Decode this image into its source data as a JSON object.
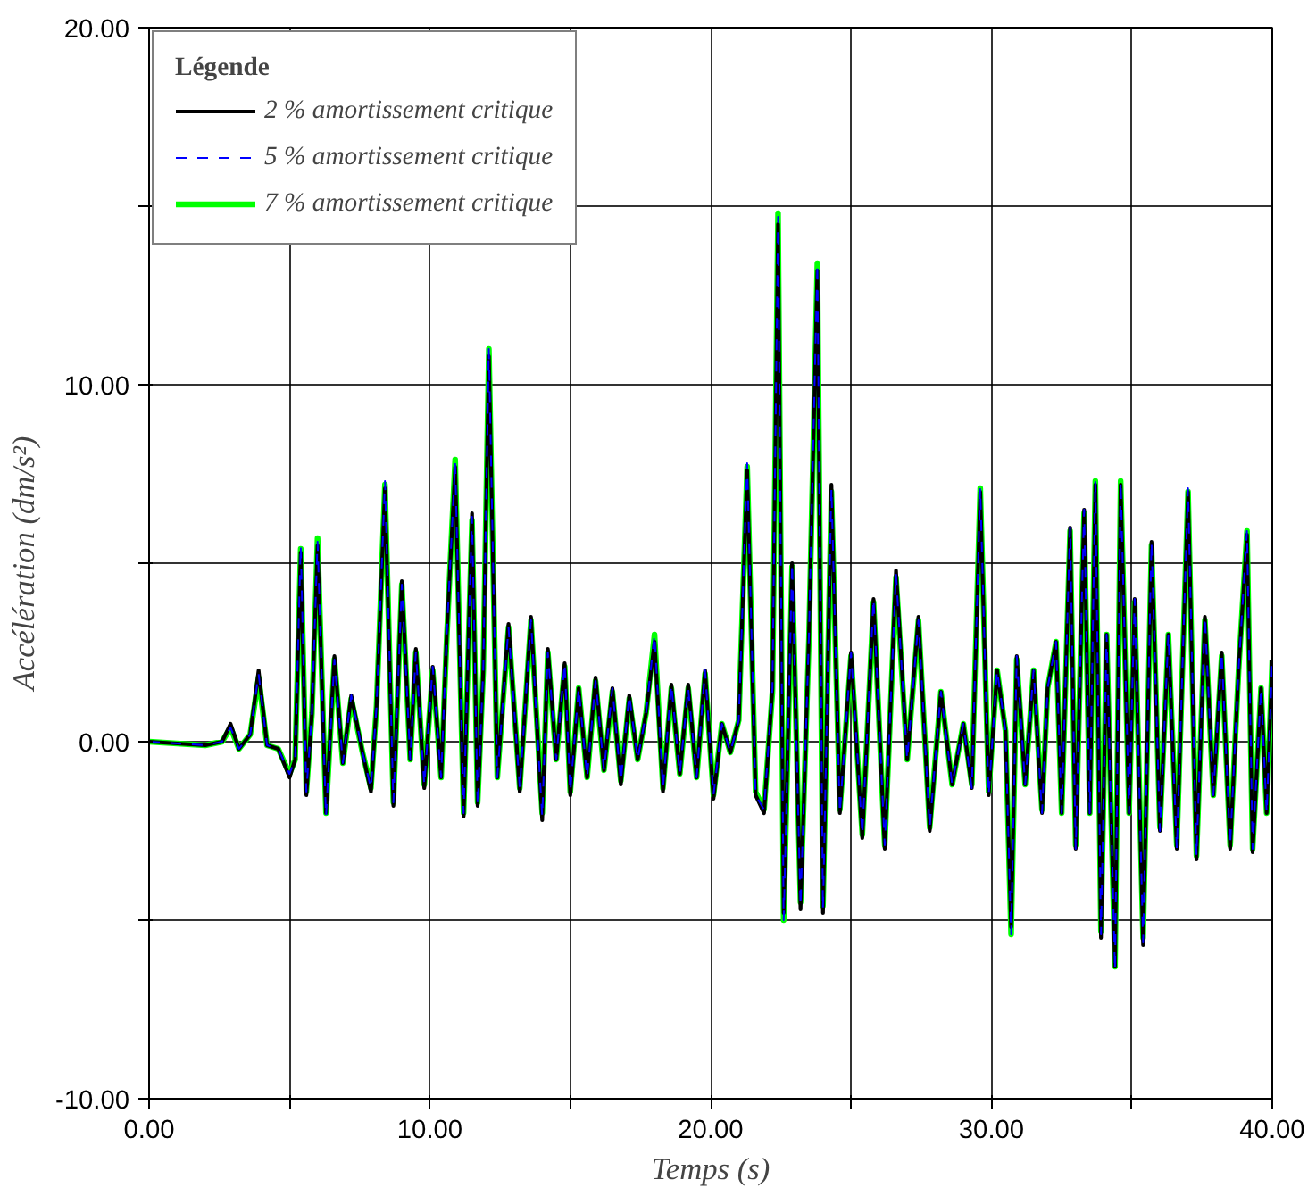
{
  "chart_data": {
    "type": "line",
    "xlabel": "Temps (s)",
    "ylabel": "Accélération (dm/s²)",
    "legend_title": "Légende",
    "legend": "top left",
    "grid": true,
    "xlim": [
      0,
      40
    ],
    "ylim": [
      -10,
      20
    ],
    "xticks": [
      {
        "value": 0,
        "label": "0.00"
      },
      {
        "value": 5,
        "label": null
      },
      {
        "value": 10,
        "label": "10.00"
      },
      {
        "value": 15,
        "label": null
      },
      {
        "value": 20,
        "label": "20.00"
      },
      {
        "value": 25,
        "label": null
      },
      {
        "value": 30,
        "label": "30.00"
      },
      {
        "value": 35,
        "label": null
      },
      {
        "value": 40,
        "label": "40.00"
      }
    ],
    "yticks": [
      {
        "value": -10,
        "label": "-10.00"
      },
      {
        "value": -5,
        "label": null
      },
      {
        "value": 0,
        "label": "0.00"
      },
      {
        "value": 5,
        "label": null
      },
      {
        "value": 10,
        "label": "10.00"
      },
      {
        "value": 15,
        "label": null
      },
      {
        "value": 20,
        "label": "20.00"
      }
    ],
    "x": [
      0,
      1,
      2,
      2.6,
      2.9,
      3.2,
      3.6,
      3.9,
      4.2,
      4.6,
      5.0,
      5.2,
      5.4,
      5.6,
      5.8,
      6.0,
      6.3,
      6.6,
      6.9,
      7.2,
      7.6,
      7.9,
      8.1,
      8.4,
      8.7,
      9.0,
      9.3,
      9.5,
      9.8,
      10.1,
      10.4,
      10.6,
      10.9,
      11.2,
      11.5,
      11.7,
      11.9,
      12.1,
      12.4,
      12.8,
      13.2,
      13.6,
      14.0,
      14.2,
      14.5,
      14.8,
      15.0,
      15.3,
      15.6,
      15.9,
      16.2,
      16.5,
      16.8,
      17.1,
      17.4,
      17.7,
      18.0,
      18.3,
      18.6,
      18.9,
      19.2,
      19.5,
      19.8,
      20.1,
      20.4,
      20.7,
      21.0,
      21.3,
      21.6,
      21.9,
      22.2,
      22.4,
      22.6,
      22.9,
      23.2,
      23.5,
      23.8,
      24.0,
      24.3,
      24.6,
      25.0,
      25.4,
      25.8,
      26.2,
      26.6,
      27.0,
      27.4,
      27.8,
      28.2,
      28.6,
      29.0,
      29.3,
      29.6,
      29.9,
      30.2,
      30.5,
      30.7,
      30.9,
      31.2,
      31.5,
      31.8,
      32.0,
      32.3,
      32.5,
      32.8,
      33.0,
      33.3,
      33.5,
      33.7,
      33.9,
      34.1,
      34.4,
      34.6,
      34.9,
      35.1,
      35.4,
      35.7,
      36.0,
      36.3,
      36.6,
      37.0,
      37.3,
      37.6,
      37.9,
      38.2,
      38.5,
      38.8,
      39.1,
      39.3,
      39.6,
      39.8,
      40.0
    ],
    "series": [
      {
        "name": "2 % amortissement critique",
        "color": "#000000",
        "line_style": "solid",
        "values": [
          0,
          -0.05,
          -0.1,
          0.0,
          0.5,
          -0.2,
          0.2,
          2.0,
          -0.1,
          -0.2,
          -1.0,
          -0.5,
          5.3,
          -1.5,
          0.8,
          5.5,
          -2.0,
          2.4,
          -0.6,
          1.3,
          -0.3,
          -1.4,
          1.0,
          7.1,
          -1.8,
          4.5,
          -0.5,
          2.6,
          -1.3,
          2.1,
          -1.0,
          3.0,
          7.7,
          -2.1,
          6.4,
          -1.8,
          2.0,
          10.8,
          -1.0,
          3.3,
          -1.4,
          3.5,
          -2.2,
          2.6,
          -0.5,
          2.2,
          -1.5,
          1.5,
          -1.0,
          1.8,
          -0.8,
          1.5,
          -1.2,
          1.3,
          -0.5,
          0.8,
          2.8,
          -1.4,
          1.6,
          -0.9,
          1.6,
          -1.0,
          2.0,
          -1.6,
          0.5,
          -0.3,
          0.6,
          7.6,
          -1.5,
          -2.0,
          1.5,
          14.5,
          -4.8,
          5.0,
          -4.7,
          3.0,
          13.2,
          -4.8,
          7.2,
          -2.0,
          2.5,
          -2.7,
          4.0,
          -3.0,
          4.8,
          -0.5,
          3.5,
          -2.5,
          1.4,
          -1.2,
          0.5,
          -1.3,
          7.0,
          -1.5,
          2.0,
          0.3,
          -5.2,
          2.4,
          -1.2,
          2.0,
          -2.0,
          1.5,
          2.8,
          -2.0,
          6.0,
          -3.0,
          6.5,
          -2.0,
          7.2,
          -5.5,
          3.0,
          -6.3,
          7.2,
          -2.0,
          4.0,
          -5.7,
          5.6,
          -2.5,
          3.0,
          -3.0,
          7.0,
          -3.3,
          3.5,
          -1.5,
          2.5,
          -3.0,
          2.0,
          5.8,
          -3.1,
          1.5,
          -2.0,
          2.3
        ]
      },
      {
        "name": "5 % amortissement critique",
        "color": "#0000ff",
        "line_style": "dashed",
        "values": [
          0,
          -0.05,
          -0.1,
          0.0,
          0.4,
          -0.2,
          0.2,
          1.9,
          -0.1,
          -0.2,
          -0.9,
          -0.5,
          5.5,
          -1.4,
          0.8,
          5.6,
          -2.1,
          2.3,
          -0.6,
          1.3,
          -0.3,
          -1.3,
          1.0,
          7.3,
          -1.7,
          4.4,
          -0.5,
          2.5,
          -1.2,
          2.1,
          -1.0,
          3.0,
          7.8,
          -2.0,
          6.3,
          -1.8,
          2.0,
          11.0,
          -1.0,
          3.2,
          -1.3,
          3.4,
          -2.1,
          2.5,
          -0.5,
          2.2,
          -1.4,
          1.5,
          -1.0,
          1.7,
          -0.8,
          1.5,
          -1.1,
          1.3,
          -0.5,
          0.8,
          3.0,
          -1.3,
          1.6,
          -0.9,
          1.5,
          -1.0,
          2.0,
          -1.5,
          0.5,
          -0.3,
          0.6,
          7.8,
          -1.5,
          -1.9,
          1.5,
          14.7,
          -5.0,
          5.0,
          -4.6,
          3.0,
          13.4,
          -4.7,
          7.1,
          -2.0,
          2.5,
          -2.6,
          4.0,
          -2.9,
          4.7,
          -0.5,
          3.4,
          -2.4,
          1.4,
          -1.2,
          0.5,
          -1.3,
          7.1,
          -1.5,
          2.0,
          0.3,
          -5.4,
          2.4,
          -1.2,
          2.0,
          -2.0,
          1.5,
          2.8,
          -2.0,
          6.0,
          -3.0,
          6.5,
          -2.0,
          7.3,
          -5.4,
          3.0,
          -6.4,
          7.3,
          -2.0,
          4.0,
          -5.6,
          5.6,
          -2.5,
          3.0,
          -3.0,
          7.1,
          -3.2,
          3.5,
          -1.5,
          2.5,
          -2.9,
          2.0,
          5.9,
          -3.0,
          1.5,
          -2.0,
          2.3
        ]
      },
      {
        "name": "7 % amortissement critique",
        "color": "#00ff00",
        "line_style": "solid",
        "values": [
          0,
          -0.05,
          -0.1,
          0.0,
          0.4,
          -0.2,
          0.2,
          1.8,
          -0.1,
          -0.2,
          -0.9,
          -0.5,
          5.4,
          -1.4,
          0.8,
          5.7,
          -2.0,
          2.3,
          -0.6,
          1.2,
          -0.3,
          -1.3,
          1.0,
          7.2,
          -1.7,
          4.4,
          -0.5,
          2.5,
          -1.2,
          2.0,
          -1.0,
          2.9,
          7.9,
          -2.0,
          6.2,
          -1.7,
          2.0,
          11.0,
          -1.0,
          3.2,
          -1.3,
          3.4,
          -2.0,
          2.5,
          -0.5,
          2.1,
          -1.4,
          1.5,
          -1.0,
          1.7,
          -0.8,
          1.4,
          -1.1,
          1.2,
          -0.5,
          0.8,
          3.0,
          -1.3,
          1.5,
          -0.9,
          1.5,
          -1.0,
          1.9,
          -1.5,
          0.5,
          -0.3,
          0.6,
          7.7,
          -1.4,
          -1.9,
          1.4,
          14.8,
          -5.0,
          4.9,
          -4.5,
          2.9,
          13.4,
          -4.6,
          7.0,
          -1.9,
          2.4,
          -2.6,
          3.9,
          -2.9,
          4.6,
          -0.5,
          3.4,
          -2.4,
          1.4,
          -1.2,
          0.5,
          -1.2,
          7.1,
          -1.4,
          2.0,
          0.3,
          -5.4,
          2.3,
          -1.2,
          2.0,
          -1.9,
          1.5,
          2.8,
          -2.0,
          5.9,
          -2.9,
          6.4,
          -2.0,
          7.3,
          -5.3,
          3.0,
          -6.3,
          7.3,
          -2.0,
          3.9,
          -5.5,
          5.5,
          -2.4,
          3.0,
          -2.9,
          7.0,
          -3.2,
          3.4,
          -1.5,
          2.4,
          -2.9,
          2.0,
          5.9,
          -3.0,
          1.5,
          -2.0,
          2.3
        ]
      }
    ]
  }
}
